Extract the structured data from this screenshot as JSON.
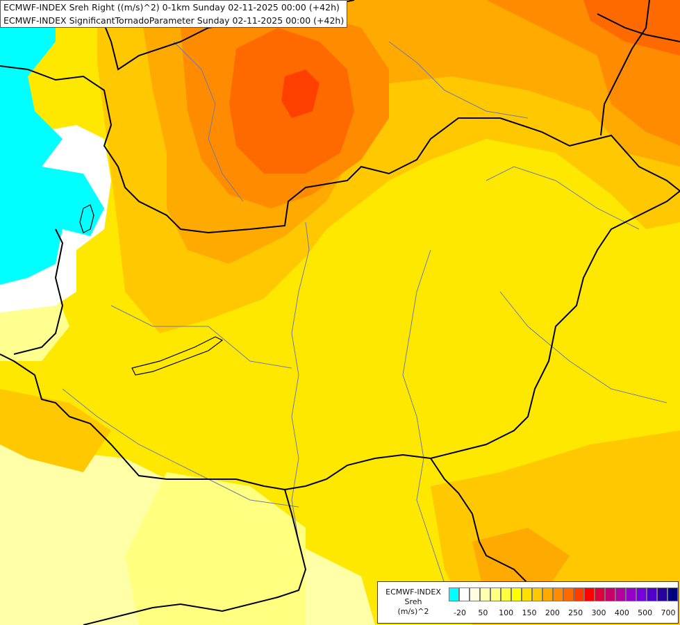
{
  "title": {
    "line1": "ECMWF-INDEX Sreh Right ((m/s)^2) 0-1km Sunday 02-11-2025 00:00 (+42h)",
    "line2": "ECMWF-INDEX SignificantTornadoParameter Sunday 02-11-2025 00:00 (+42h)"
  },
  "legend": {
    "model": "ECMWF-INDEX",
    "param": "Sreh",
    "unit": "(m/s)^2",
    "colors": [
      "#00ffff",
      "#ffffff",
      "#ffffe0",
      "#ffffb0",
      "#ffff80",
      "#ffff40",
      "#ffff00",
      "#ffe000",
      "#ffc800",
      "#ffaa00",
      "#ff8c00",
      "#ff6a00",
      "#ff3c00",
      "#ff0000",
      "#e0003c",
      "#c8006e",
      "#b400a0",
      "#9600c8",
      "#7800dc",
      "#5000c8",
      "#2800a0",
      "#000080"
    ],
    "ticks": [
      "-20",
      "50",
      "100",
      "150",
      "200",
      "250",
      "300",
      "400",
      "500",
      "700"
    ]
  },
  "colors": {
    "cyan_region": "#00ffff",
    "orange_max": "#ff4000",
    "background": "#ffe800"
  }
}
